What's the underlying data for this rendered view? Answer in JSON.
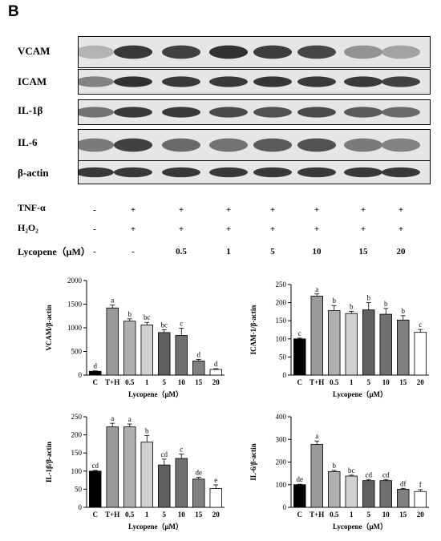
{
  "panel_letter": "B",
  "blots": [
    {
      "label": "VCAM",
      "intensities": [
        0.15,
        0.9,
        0.85,
        0.95,
        0.88,
        0.82,
        0.35,
        0.25
      ]
    },
    {
      "label": "ICAM",
      "intensities": [
        0.45,
        0.95,
        0.9,
        0.9,
        0.92,
        0.9,
        0.9,
        0.85
      ]
    },
    {
      "label": "IL-1β",
      "intensities": [
        0.55,
        0.9,
        0.9,
        0.8,
        0.75,
        0.8,
        0.7,
        0.6
      ]
    },
    {
      "label": "IL-6",
      "intensities": [
        0.5,
        0.85,
        0.6,
        0.55,
        0.7,
        0.75,
        0.5,
        0.45
      ]
    },
    {
      "label": "β-actin",
      "intensities": [
        0.9,
        0.9,
        0.9,
        0.9,
        0.9,
        0.9,
        0.9,
        0.9
      ]
    }
  ],
  "treatment_rows": [
    {
      "label": "TNF-α",
      "values": [
        "-",
        "+",
        "+",
        "+",
        "+",
        "+",
        "+",
        "+"
      ]
    },
    {
      "label": "H₂O₂",
      "values": [
        "-",
        "+",
        "+",
        "+",
        "+",
        "+",
        "+",
        "+"
      ]
    },
    {
      "label": "Lycopene（μM）",
      "values": [
        "-",
        "-",
        "0.5",
        "1",
        "5",
        "10",
        "15",
        "20"
      ]
    }
  ],
  "chart_data": [
    {
      "type": "bar",
      "categories": [
        "C",
        "T+H",
        "0.5",
        "1",
        "5",
        "10",
        "15",
        "20"
      ],
      "values": [
        80,
        1420,
        1140,
        1060,
        900,
        840,
        300,
        120
      ],
      "errors": [
        10,
        60,
        50,
        55,
        60,
        150,
        30,
        15
      ],
      "letters": [
        "d",
        "a",
        "b",
        "bc",
        "bc",
        "c",
        "d",
        "d"
      ],
      "ylabel": "VCAM/β-actin",
      "xlabel": "Lycopene（μM）",
      "ylim": [
        0,
        2000
      ],
      "yticks": [
        "0",
        "500",
        "1000",
        "1500",
        "2000"
      ]
    },
    {
      "type": "bar",
      "categories": [
        "C",
        "T+H",
        "0.5",
        "1",
        "5",
        "10",
        "15",
        "20"
      ],
      "values": [
        100,
        218,
        178,
        170,
        180,
        168,
        152,
        118
      ],
      "errors": [
        2,
        6,
        14,
        6,
        20,
        16,
        12,
        8
      ],
      "letters": [
        "c",
        "a",
        "b",
        "b",
        "b",
        "b",
        "b",
        "c"
      ],
      "ylabel": "ICAM-1/β-actin",
      "xlabel": "Lycopene（μM）",
      "ylim": [
        0,
        250
      ],
      "yticks": [
        "0",
        "50",
        "100",
        "150",
        "200",
        "250"
      ]
    },
    {
      "type": "bar",
      "categories": [
        "C",
        "T+H",
        "0.5",
        "1",
        "5",
        "10",
        "15",
        "20"
      ],
      "values": [
        100,
        222,
        222,
        180,
        117,
        135,
        78,
        52
      ],
      "errors": [
        2,
        10,
        8,
        18,
        16,
        12,
        5,
        10
      ],
      "letters": [
        "cd",
        "a",
        "a",
        "b",
        "cd",
        "c",
        "de",
        "e"
      ],
      "ylabel": "IL-1β/β-actin",
      "xlabel": "Lycopene（μM）",
      "ylim": [
        0,
        250
      ],
      "yticks": [
        "0",
        "50",
        "100",
        "150",
        "200",
        "250"
      ]
    },
    {
      "type": "bar",
      "categories": [
        "C",
        "T+H",
        "0.5",
        "1",
        "5",
        "10",
        "15",
        "20"
      ],
      "values": [
        100,
        278,
        158,
        138,
        118,
        118,
        80,
        70
      ],
      "errors": [
        2,
        15,
        5,
        4,
        5,
        5,
        4,
        8
      ],
      "letters": [
        "de",
        "a",
        "b",
        "bc",
        "cd",
        "cd",
        "df",
        "f"
      ],
      "ylabel": "IL-6/β-actin",
      "xlabel": "Lycopene（μM）",
      "ylim": [
        0,
        400
      ],
      "yticks": [
        "0",
        "100",
        "200",
        "300",
        "400"
      ]
    }
  ]
}
